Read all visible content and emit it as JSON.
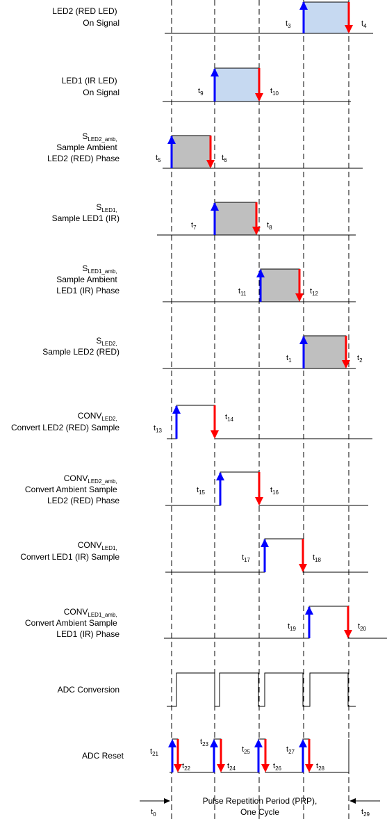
{
  "rows": [
    {
      "label": [
        "LED2 (RED  LED)",
        "On Signal"
      ],
      "label_sub": [],
      "shade": "blue",
      "times": [
        "3",
        "4"
      ]
    },
    {
      "label": [
        "LED1 (IR LED)",
        "On Signal"
      ],
      "label_sub": [],
      "shade": "blue",
      "times": [
        "9",
        "10"
      ]
    },
    {
      "label": [
        "S",
        "Sample Ambient",
        "LED2 (RED) Phase"
      ],
      "label_sub": [
        "LED2_amb",
        ","
      ],
      "shade": "gray",
      "times": [
        "5",
        "6"
      ]
    },
    {
      "label": [
        "S",
        "Sample LED1 (IR)"
      ],
      "label_sub": [
        "LED1",
        ","
      ],
      "shade": "gray",
      "times": [
        "7",
        "8"
      ]
    },
    {
      "label": [
        "S",
        "Sample Ambient",
        "LED1 (IR) Phase"
      ],
      "label_sub": [
        "LED1_amb",
        ","
      ],
      "shade": "gray",
      "times": [
        "11",
        "12"
      ]
    },
    {
      "label": [
        "S",
        "Sample LED2 (RED)"
      ],
      "label_sub": [
        "LED2",
        ","
      ],
      "shade": "gray",
      "times": [
        "1",
        "2"
      ]
    },
    {
      "label": [
        "CONV",
        "Convert LED2 (RED) Sample"
      ],
      "label_sub": [
        "LED2",
        ","
      ],
      "shade": "none",
      "times": [
        "13",
        "14"
      ]
    },
    {
      "label": [
        "CONV",
        "Convert Ambient Sample",
        "LED2 (RED) Phase"
      ],
      "label_sub": [
        "LED2_amb",
        ","
      ],
      "shade": "none",
      "times": [
        "15",
        "16"
      ]
    },
    {
      "label": [
        "CONV",
        "Convert LED1 (IR) Sample"
      ],
      "label_sub": [
        "LED1",
        ","
      ],
      "shade": "none",
      "times": [
        "17",
        "18"
      ]
    },
    {
      "label": [
        "CONV",
        "Convert Ambient Sample",
        "LED1 (IR) Phase"
      ],
      "label_sub": [
        "LED1_amb",
        ","
      ],
      "shade": "none",
      "times": [
        "19",
        "20"
      ]
    }
  ],
  "adc_conversion": {
    "label": "ADC Conversion"
  },
  "adc_reset": {
    "label": "ADC Reset",
    "times": [
      "21",
      "22",
      "23",
      "24",
      "25",
      "26",
      "27",
      "28"
    ]
  },
  "prp": {
    "line1": "Pulse Repetition Period (PRP),",
    "line2": "One Cycle",
    "t_start": "0",
    "t_end": "29"
  },
  "time_symbol": "t",
  "colors": {
    "rise_arrow": "#0000ff",
    "fall_arrow": "#ff0000",
    "blue_fill": "#c6d9f1",
    "gray_fill": "#bfbfbf",
    "line": "#000000"
  }
}
